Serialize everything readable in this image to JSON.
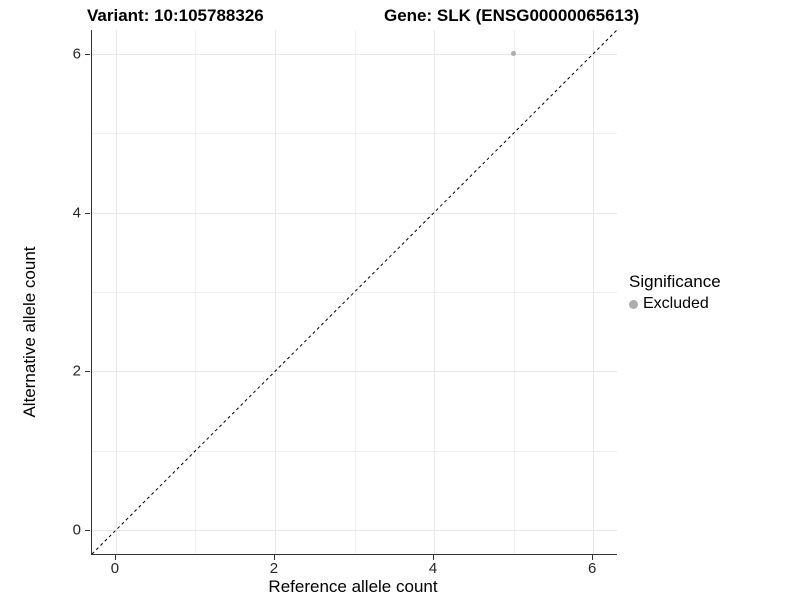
{
  "titles": {
    "variant": "Variant: 10:105788326",
    "gene": "Gene: SLK (ENSG00000065613)"
  },
  "axes": {
    "x": {
      "label": "Reference allele count",
      "ticks": [
        "0",
        "2",
        "4",
        "6"
      ]
    },
    "y": {
      "label": "Alternative allele count",
      "ticks": [
        "0",
        "2",
        "4",
        "6"
      ]
    }
  },
  "legend": {
    "title": "Significance",
    "items": [
      {
        "label": "Excluded",
        "color": "#adadad"
      }
    ]
  },
  "chart_data": {
    "type": "scatter",
    "title_left": "Variant: 10:105788326",
    "title_right": "Gene: SLK (ENSG00000065613)",
    "xlabel": "Reference allele count",
    "ylabel": "Alternative allele count",
    "xlim": [
      -0.3,
      6.3
    ],
    "ylim": [
      -0.3,
      6.3
    ],
    "x_ticks": [
      0,
      2,
      4,
      6
    ],
    "y_ticks": [
      0,
      2,
      4,
      6
    ],
    "x_minor_ticks": [
      1,
      3,
      5
    ],
    "y_minor_ticks": [
      1,
      3,
      5
    ],
    "grid": true,
    "legend_position": "right",
    "series": [
      {
        "name": "Excluded",
        "color": "#adadad",
        "points": [
          [
            5,
            6
          ]
        ]
      }
    ],
    "reference_line": {
      "type": "identity",
      "style": "dashed",
      "color": "#000000",
      "from": [
        -0.3,
        -0.3
      ],
      "to": [
        6.3,
        6.3
      ]
    }
  }
}
